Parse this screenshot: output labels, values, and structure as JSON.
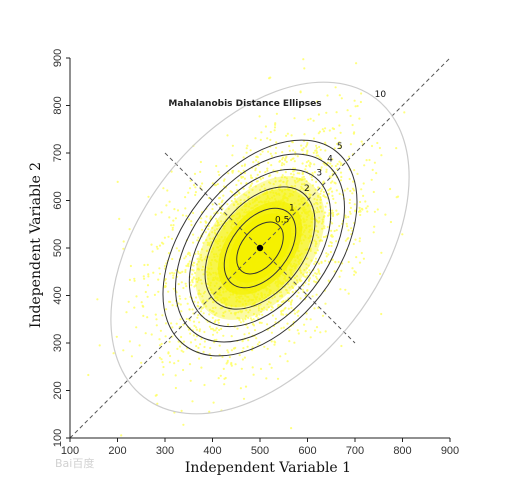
{
  "chart_data": {
    "type": "scatter",
    "title": "Mahalanobis Distance Ellipses",
    "xlabel": "Independent Variable 1",
    "ylabel": "Independent Variable 2",
    "xlim": [
      100,
      900
    ],
    "ylim": [
      100,
      900
    ],
    "xticks": [
      "100",
      "200",
      "300",
      "400",
      "500",
      "600",
      "700",
      "800",
      "900"
    ],
    "yticks": [
      "100",
      "200",
      "300",
      "400",
      "500",
      "600",
      "700",
      "800",
      "900"
    ],
    "center": {
      "x": 500,
      "y": 500
    },
    "point_color": "#ffff66",
    "fill_color": "#f4f000",
    "contour_color": "#333333",
    "outer_contour_color": "#cccccc",
    "contours": [
      {
        "label": "0.5",
        "distance": 0.5
      },
      {
        "label": "1",
        "distance": 1
      },
      {
        "label": "2",
        "distance": 2
      },
      {
        "label": "3",
        "distance": 3
      },
      {
        "label": "4",
        "distance": 4
      },
      {
        "label": "5",
        "distance": 5
      },
      {
        "label": "10",
        "distance": 10
      }
    ],
    "diagonal_lines": [
      {
        "name": "major-axis",
        "from": [
          100,
          100
        ],
        "to": [
          900,
          900
        ]
      },
      {
        "name": "minor-axis",
        "from": [
          300,
          700
        ],
        "to": [
          700,
          300
        ]
      }
    ],
    "grid": false,
    "legend": "none"
  },
  "watermark": {
    "text": "Bai百度"
  }
}
